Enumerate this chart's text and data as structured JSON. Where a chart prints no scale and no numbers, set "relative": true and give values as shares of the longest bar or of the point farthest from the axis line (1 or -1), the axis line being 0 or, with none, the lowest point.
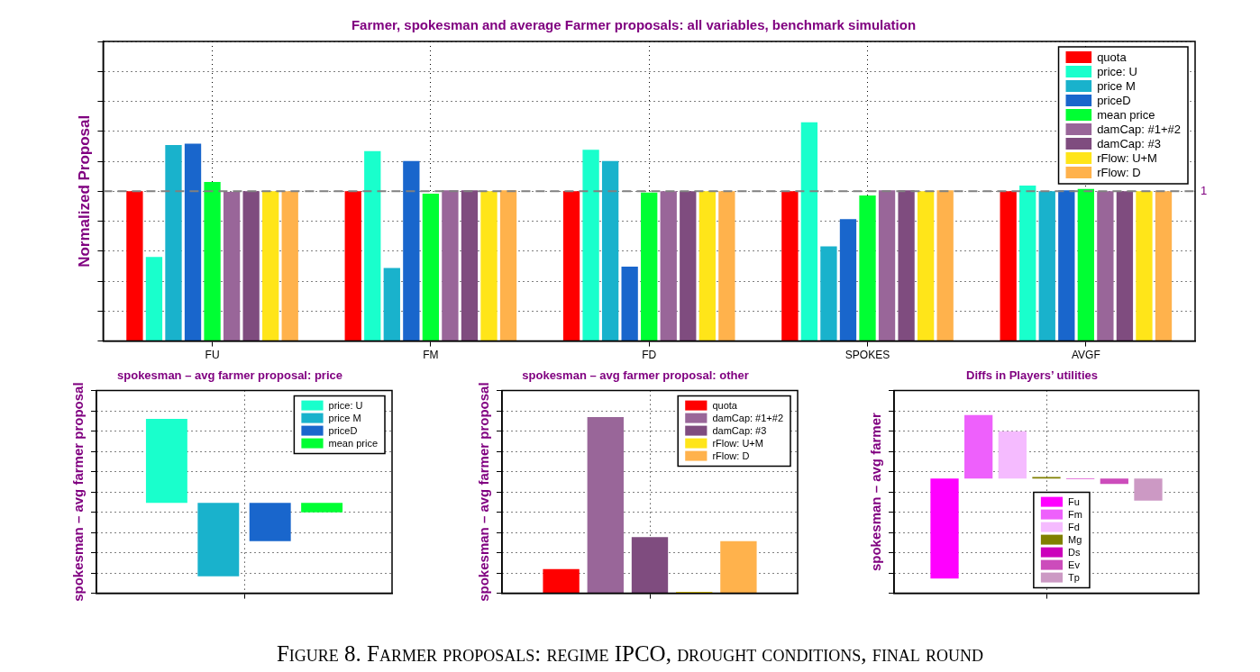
{
  "chart_data": [
    {
      "type": "bar",
      "title": "Farmer, spokesman and average Farmer proposals: all variables, benchmark simulation",
      "ylabel": "Normalized Proposal",
      "categories": [
        "FU",
        "FM",
        "FD",
        "SPOKES",
        "AVGF"
      ],
      "relative": true,
      "grid": true,
      "legend": "top right",
      "series": [
        {
          "name": "quota",
          "color": "#ff0000",
          "values": [
            0.685,
            0.685,
            0.685,
            0.685,
            0.685
          ]
        },
        {
          "name": "price: U",
          "color": "#19ffcc",
          "values": [
            0.385,
            0.868,
            0.875,
            1,
            0.711
          ]
        },
        {
          "name": "price M",
          "color": "#19b2cc",
          "values": [
            0.896,
            0.334,
            0.823,
            0.433,
            0.685
          ]
        },
        {
          "name": "priceD",
          "color": "#1966cc",
          "values": [
            0.903,
            0.823,
            0.34,
            0.558,
            0.689
          ]
        },
        {
          "name": "mean price",
          "color": "#00ff33",
          "values": [
            0.727,
            0.674,
            0.679,
            0.666,
            0.695
          ]
        },
        {
          "name": "damCap: #1+#2",
          "color": "#996699",
          "values": [
            0.682,
            0.689,
            0.685,
            0.689,
            0.685
          ]
        },
        {
          "name": "damCap: #3",
          "color": "#7f4c7f",
          "values": [
            0.685,
            0.689,
            0.685,
            0.689,
            0.685
          ]
        },
        {
          "name": "rFlow: U+M",
          "color": "#ffe519",
          "values": [
            0.685,
            0.685,
            0.685,
            0.685,
            0.685
          ]
        },
        {
          "name": "rFlow: D",
          "color": "#ffb24c",
          "values": [
            0.685,
            0.689,
            0.685,
            0.689,
            0.685
          ]
        }
      ],
      "ref_lines": [
        {
          "axis": "y",
          "value": 0.685,
          "label": "1",
          "color": "#808080",
          "line_style": "dashed"
        }
      ],
      "annotations": [
        "Figure 8. Farmer proposals: regime IPCO, drought conditions, final round"
      ]
    },
    {
      "type": "bar",
      "title": "spokesman – avg farmer proposal: price",
      "ylabel": "spokesman – avg farmer proposal",
      "categories": [
        null
      ],
      "relative": true,
      "grid": true,
      "legend": "top right",
      "series": [
        {
          "name": "price: U",
          "color": "#19ffcc",
          "values": [
            1
          ]
        },
        {
          "name": "price M",
          "color": "#19b2cc",
          "values": [
            -0.874
          ]
        },
        {
          "name": "priceD",
          "color": "#1966cc",
          "values": [
            -0.457
          ]
        },
        {
          "name": "mean price",
          "color": "#00ff33",
          "values": [
            -0.113
          ]
        }
      ]
    },
    {
      "type": "bar",
      "title": "spokesman – avg farmer proposal: other",
      "ylabel": "spokesman – avg farmer proposal",
      "categories": [
        null
      ],
      "relative": true,
      "grid": true,
      "legend": "top right",
      "series": [
        {
          "name": "quota",
          "color": "#ff0000",
          "values": [
            0.137
          ]
        },
        {
          "name": "damCap: #1+#2",
          "color": "#996699",
          "values": [
            1
          ]
        },
        {
          "name": "damCap: #3",
          "color": "#7f4c7f",
          "values": [
            0.319
          ]
        },
        {
          "name": "rFlow: U+M",
          "color": "#ffe519",
          "values": [
            0.008
          ]
        },
        {
          "name": "rFlow: D",
          "color": "#ffb24c",
          "values": [
            0.296
          ]
        }
      ]
    },
    {
      "type": "bar",
      "title": "Diffs in Players’ utilities",
      "ylabel": "spokesman – avg farmer",
      "categories": [
        null
      ],
      "relative": true,
      "grid": true,
      "legend": "bottom",
      "series": [
        {
          "name": "Fu",
          "color": "#ff00ff",
          "values": [
            -1
          ]
        },
        {
          "name": "Fm",
          "color": "#ee60fc",
          "values": [
            0.634
          ]
        },
        {
          "name": "Fd",
          "color": "#f5bbff",
          "values": [
            0.472
          ]
        },
        {
          "name": "Mg",
          "color": "#808000",
          "values": [
            0.016
          ]
        },
        {
          "name": "Ds",
          "color": "#cc00bb",
          "values": [
            -0.005
          ]
        },
        {
          "name": "Ev",
          "color": "#cc4cbb",
          "values": [
            -0.054
          ]
        },
        {
          "name": "Tp",
          "color": "#cc99c4",
          "values": [
            -0.22
          ]
        }
      ]
    }
  ]
}
